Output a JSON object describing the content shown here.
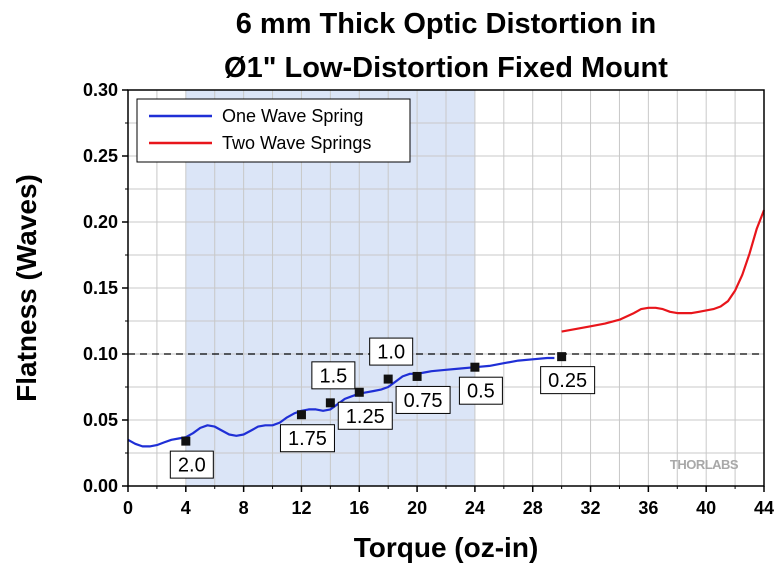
{
  "chart_data": {
    "type": "line",
    "title_lines": [
      "6 mm Thick Optic Distortion in",
      "Ø1\" Low-Distortion Fixed Mount"
    ],
    "xlabel": "Torque (oz-in)",
    "ylabel": "Flatness (Waves)",
    "xlim": [
      0,
      44
    ],
    "ylim": [
      0,
      0.3
    ],
    "x_ticks": [
      0,
      4,
      8,
      12,
      16,
      20,
      24,
      28,
      32,
      36,
      40,
      44
    ],
    "x_tick_labels": [
      "0",
      "4",
      "8",
      "12",
      "16",
      "20",
      "24",
      "28",
      "32",
      "36",
      "40",
      "44"
    ],
    "y_ticks": [
      0,
      0.05,
      0.1,
      0.15,
      0.2,
      0.25,
      0.3
    ],
    "y_tick_labels": [
      "0.00",
      "0.05",
      "0.10",
      "0.15",
      "0.20",
      "0.25",
      "0.30"
    ],
    "grid": true,
    "legend_position": "top-left",
    "shaded_region": {
      "x_start": 4,
      "x_end": 24,
      "color": "#dbe5f7"
    },
    "reference_line": {
      "y": 0.1,
      "style": "dashed",
      "color": "#000000"
    },
    "series": [
      {
        "name": "One Wave Spring",
        "color": "#1f2fd6",
        "x": [
          0,
          0.5,
          1,
          1.5,
          2,
          2.5,
          3,
          3.5,
          4,
          4.5,
          5,
          5.5,
          6,
          6.5,
          7,
          7.5,
          8,
          8.5,
          9,
          9.5,
          10,
          10.5,
          11,
          11.5,
          12,
          12.5,
          13,
          13.5,
          14,
          14.5,
          15,
          15.5,
          16,
          16.5,
          17,
          17.5,
          18,
          18.5,
          19,
          19.5,
          20,
          20.5,
          21,
          22,
          23,
          24,
          25,
          26,
          27,
          28,
          29,
          29.5
        ],
        "y": [
          0.035,
          0.032,
          0.03,
          0.03,
          0.031,
          0.033,
          0.035,
          0.036,
          0.037,
          0.04,
          0.044,
          0.046,
          0.045,
          0.042,
          0.039,
          0.038,
          0.039,
          0.042,
          0.045,
          0.046,
          0.046,
          0.048,
          0.052,
          0.055,
          0.057,
          0.058,
          0.058,
          0.057,
          0.058,
          0.062,
          0.066,
          0.068,
          0.07,
          0.071,
          0.072,
          0.073,
          0.075,
          0.079,
          0.083,
          0.085,
          0.085,
          0.086,
          0.087,
          0.088,
          0.089,
          0.09,
          0.091,
          0.093,
          0.095,
          0.096,
          0.097,
          0.097
        ]
      },
      {
        "name": "Two Wave Springs",
        "color": "#e8151b",
        "x": [
          30,
          31,
          32,
          33,
          34,
          35,
          35.5,
          36,
          36.5,
          37,
          37.5,
          38,
          38.5,
          39,
          39.5,
          40,
          40.5,
          41,
          41.5,
          42,
          42.5,
          43,
          43.5,
          44
        ],
        "y": [
          0.117,
          0.119,
          0.121,
          0.123,
          0.126,
          0.131,
          0.134,
          0.135,
          0.135,
          0.134,
          0.132,
          0.131,
          0.131,
          0.131,
          0.132,
          0.133,
          0.134,
          0.136,
          0.14,
          0.148,
          0.16,
          0.176,
          0.195,
          0.209
        ]
      }
    ],
    "markers": [
      {
        "x": 4,
        "y": 0.034,
        "label": "2.0",
        "label_pos": "below"
      },
      {
        "x": 12,
        "y": 0.054,
        "label": "1.75",
        "label_pos": "below"
      },
      {
        "x": 14,
        "y": 0.063,
        "label": "1.5",
        "label_pos": "above"
      },
      {
        "x": 16,
        "y": 0.071,
        "label": "1.25",
        "label_pos": "below"
      },
      {
        "x": 18,
        "y": 0.081,
        "label": "1.0",
        "label_pos": "above"
      },
      {
        "x": 20,
        "y": 0.083,
        "label": "0.75",
        "label_pos": "below"
      },
      {
        "x": 24,
        "y": 0.09,
        "label": "0.5",
        "label_pos": "below"
      },
      {
        "x": 30,
        "y": 0.098,
        "label": "0.25",
        "label_pos": "below"
      }
    ],
    "logo": "THORLABS"
  }
}
